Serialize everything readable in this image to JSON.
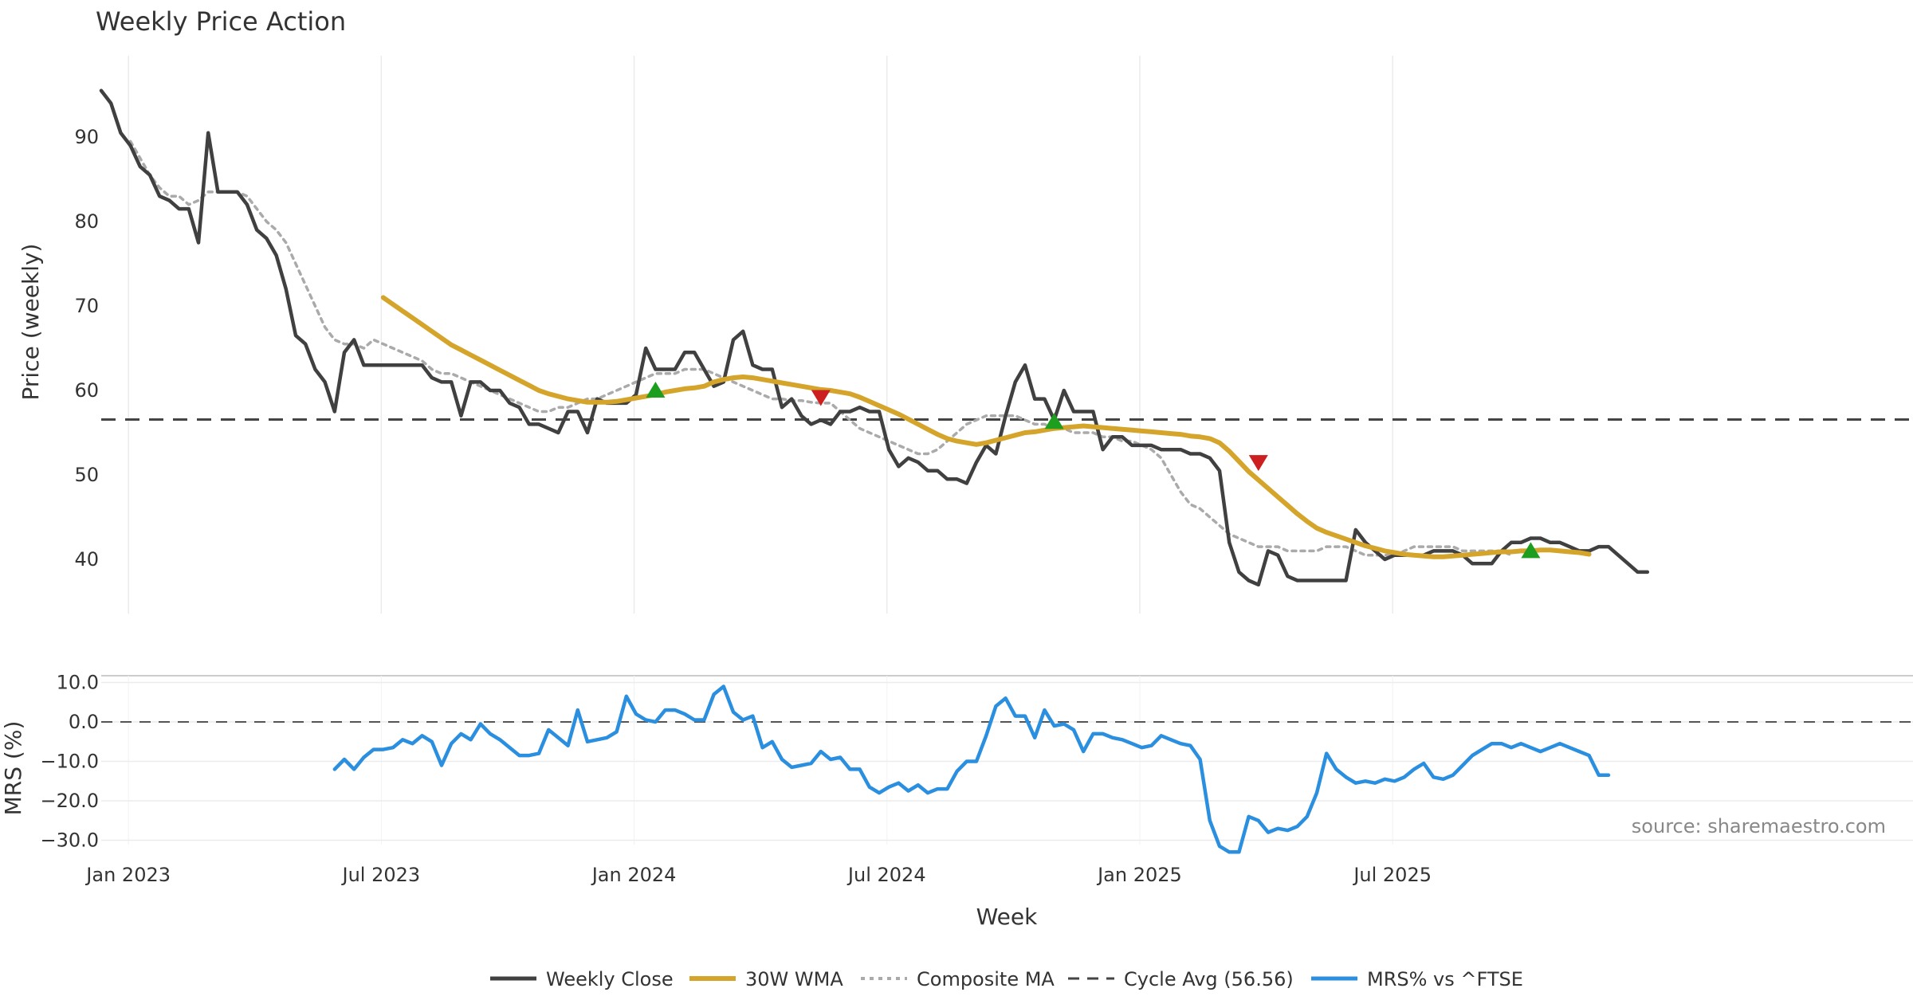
{
  "chart_data": {
    "type": "line",
    "title": "Weekly Price Action",
    "xlabel": "Week",
    "x_ticks": [
      "Jan 2023",
      "Jul 2023",
      "Jan 2024",
      "Jul 2024",
      "Jan 2025",
      "Jul 2025"
    ],
    "price_panel": {
      "ylabel": "Price (weekly)",
      "ylim": [
        33.5,
        99
      ],
      "yticks": [
        "90",
        "80",
        "70",
        "60",
        "50",
        "40"
      ],
      "cycle_avg": 56.56,
      "series": [
        {
          "name": "Weekly Close",
          "color": "#404040",
          "start_week": 0,
          "values": [
            95.5,
            94,
            90.5,
            89,
            86.5,
            85.5,
            83,
            82.5,
            81.5,
            81.5,
            77.5,
            90.5,
            83.5,
            83.5,
            83.5,
            82,
            79,
            78,
            76,
            72,
            66.5,
            65.5,
            62.5,
            61,
            57.5,
            64.5,
            66,
            63,
            63,
            63,
            63,
            63,
            63,
            63,
            61.5,
            61,
            61,
            57,
            61,
            61,
            60,
            60,
            58.5,
            58,
            56,
            56,
            55.5,
            55,
            57.5,
            57.5,
            55,
            59,
            58.5,
            58.5,
            58.5,
            59.5,
            65,
            62.5,
            62.5,
            62.5,
            64.5,
            64.5,
            62.5,
            60.5,
            61,
            66,
            67,
            63,
            62.5,
            62.5,
            58,
            59,
            57,
            56,
            56.5,
            56,
            57.5,
            57.5,
            58,
            57.5,
            57.5,
            53,
            51,
            52,
            51.5,
            50.5,
            50.5,
            49.5,
            49.5,
            49,
            51.5,
            53.5,
            52.5,
            57,
            61,
            63,
            59,
            59,
            56.5,
            60,
            57.5,
            57.5,
            57.5,
            53,
            54.5,
            54.5,
            53.5,
            53.5,
            53.5,
            53,
            53,
            53,
            52.5,
            52.5,
            52,
            50.5,
            42,
            38.5,
            37.5,
            37,
            41,
            40.5,
            38,
            37.5,
            37.5,
            37.5,
            37.5,
            37.5,
            37.5,
            43.5,
            42,
            41,
            40,
            40.5,
            40.5,
            40.5,
            40.5,
            41,
            41,
            41,
            40.5,
            39.5,
            39.5,
            39.5,
            41,
            42,
            42,
            42.5,
            42.5,
            42,
            42,
            41.5,
            41,
            41,
            41.5,
            41.5,
            40.5,
            39.5,
            38.5,
            38.5
          ]
        },
        {
          "name": "30W WMA",
          "color": "#d4a52a",
          "start_week": 29,
          "values": [
            71,
            70.2,
            69.4,
            68.6,
            67.8,
            67,
            66.2,
            65.4,
            64.8,
            64.2,
            63.6,
            63,
            62.4,
            61.8,
            61.2,
            60.6,
            60,
            59.6,
            59.3,
            59,
            58.8,
            58.6,
            58.6,
            58.6,
            58.7,
            58.9,
            59.1,
            59.3,
            59.5,
            59.8,
            60,
            60.2,
            60.3,
            60.5,
            61,
            61.3,
            61.5,
            61.6,
            61.5,
            61.3,
            61.1,
            60.9,
            60.7,
            60.5,
            60.3,
            60.1,
            60,
            59.8,
            59.6,
            59.2,
            58.7,
            58.2,
            57.7,
            57.2,
            56.6,
            56,
            55.4,
            54.8,
            54.3,
            54,
            53.8,
            53.6,
            53.8,
            54.1,
            54.4,
            54.7,
            55,
            55.1,
            55.3,
            55.5,
            55.6,
            55.7,
            55.8,
            55.7,
            55.6,
            55.5,
            55.4,
            55.3,
            55.2,
            55.1,
            55,
            54.9,
            54.8,
            54.6,
            54.5,
            54.3,
            53.8,
            52.8,
            51.6,
            50.4,
            49.4,
            48.4,
            47.4,
            46.4,
            45.4,
            44.5,
            43.7,
            43.2,
            42.8,
            42.4,
            42,
            41.6,
            41.3,
            41,
            40.8,
            40.6,
            40.5,
            40.4,
            40.3,
            40.3,
            40.4,
            40.5,
            40.6,
            40.7,
            40.8,
            40.9,
            40.9,
            41,
            41,
            41.1,
            41.1,
            41,
            40.9,
            40.8,
            40.6
          ]
        },
        {
          "name": "Composite MA",
          "color": "#aaaaaa",
          "start_week": 3,
          "values": [
            89.5,
            87.5,
            85.5,
            84,
            83,
            83,
            82,
            82.5,
            83.5,
            83.5,
            83.5,
            83.5,
            83,
            81.5,
            80,
            79,
            77.5,
            75,
            72.5,
            70,
            67.5,
            66,
            65.5,
            65.5,
            65,
            66,
            65.5,
            65,
            64.5,
            64,
            63.5,
            62.5,
            62,
            62,
            61.5,
            61,
            60.5,
            60,
            59.5,
            59,
            58.5,
            58,
            57.5,
            57.5,
            58,
            58,
            58.5,
            59,
            59,
            59.5,
            60,
            60.5,
            61,
            61.5,
            62,
            62,
            62,
            62.5,
            62.5,
            62.5,
            62,
            61.5,
            61,
            60.5,
            60,
            59.5,
            59,
            59,
            58.8,
            58.8,
            58.6,
            58.5,
            58.5,
            57.5,
            56.5,
            55.5,
            55,
            54.5,
            54,
            53.5,
            53,
            52.5,
            52.5,
            53,
            54,
            55,
            56,
            56.5,
            57,
            57,
            57,
            57,
            56.5,
            56,
            56,
            55.5,
            55.5,
            55,
            55,
            55,
            54.5,
            54.5,
            54,
            54,
            53.5,
            53,
            52,
            50,
            48,
            46.5,
            46,
            45,
            44,
            43,
            42.5,
            42,
            41.5,
            41.5,
            41.5,
            41,
            41,
            41,
            41,
            41.5,
            41.5,
            41.5,
            41,
            40.5,
            40.5,
            40.5,
            40.5,
            41,
            41.5,
            41.5,
            41.5,
            41.5,
            41.5,
            41,
            41,
            41,
            41,
            41,
            40.5
          ]
        }
      ],
      "buy_signals": [
        {
          "week": 57,
          "price": 60
        },
        {
          "week": 98,
          "price": 56.3
        },
        {
          "week": 147,
          "price": 41
        }
      ],
      "sell_signals": [
        {
          "week": 74,
          "price": 59.2
        },
        {
          "week": 119,
          "price": 51.5
        }
      ]
    },
    "mrs_panel": {
      "ylabel": "MRS (%)",
      "ylim": [
        -33.5,
        12
      ],
      "yticks": [
        "10.0",
        "0.0",
        "−10.0",
        "−20.0",
        "−30.0"
      ],
      "zero_line": 0,
      "series": [
        {
          "name": "MRS% vs ^FTSE",
          "color": "#2b8fe0",
          "start_week": 24,
          "values": [
            -12,
            -9.5,
            -12,
            -9,
            -7,
            -7,
            -6.5,
            -4.5,
            -5.5,
            -3.5,
            -5,
            -11,
            -5.5,
            -3,
            -4.5,
            -0.5,
            -3,
            -4.5,
            -6.5,
            -8.5,
            -8.5,
            -8,
            -2,
            -4,
            -6,
            3,
            -5,
            -4.5,
            -4,
            -2.5,
            6.5,
            2,
            0.5,
            0,
            3,
            3,
            2,
            0.5,
            0.5,
            7,
            9,
            2.5,
            0.5,
            1.5,
            -6.5,
            -5,
            -9.5,
            -11.5,
            -11,
            -10.5,
            -7.5,
            -9.5,
            -9,
            -12,
            -12,
            -16.5,
            -18,
            -16.5,
            -15.5,
            -17.5,
            -16,
            -18,
            -17,
            -17,
            -12.5,
            -10,
            -10,
            -3.5,
            4,
            6,
            1.5,
            1.5,
            -4,
            3,
            -1,
            -0.5,
            -2,
            -7.5,
            -3,
            -3,
            -4,
            -4.5,
            -5.5,
            -6.5,
            -6,
            -3.5,
            -4.5,
            -5.5,
            -6,
            -9.5,
            -25,
            -31.5,
            -33,
            -33,
            -24,
            -25,
            -28,
            -27,
            -27.5,
            -26.5,
            -24,
            -18,
            -8,
            -12,
            -14,
            -15.5,
            -15,
            -15.5,
            -14.5,
            -15,
            -14,
            -12,
            -10.5,
            -14,
            -14.5,
            -13.5,
            -11,
            -8.5,
            -7,
            -5.5,
            -5.5,
            -6.5,
            -5.5,
            -6.5,
            -7.5,
            -6.5,
            -5.5,
            -6.5,
            -7.5,
            -8.5,
            -13.5,
            -13.5
          ]
        }
      ]
    },
    "annotation": "source: sharemaestro.com",
    "legend": [
      "Weekly Close",
      "30W WMA",
      "Composite MA",
      "Cycle Avg (56.56)",
      "MRS% vs ^FTSE"
    ],
    "legend_position": "bottom-center"
  }
}
